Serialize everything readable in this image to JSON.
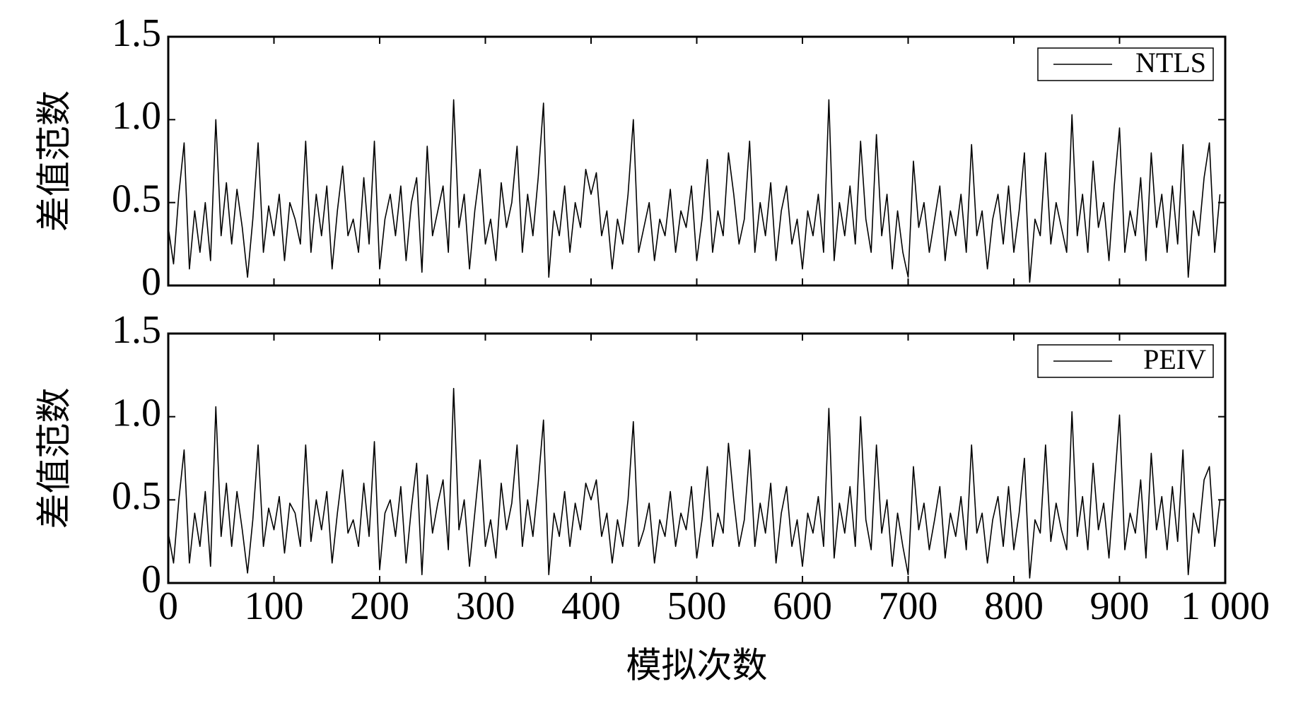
{
  "chart_data": [
    {
      "type": "line",
      "y_label": "差值范数",
      "legend": "upper right",
      "xlim": [
        0,
        1000
      ],
      "ylim": [
        0,
        1.5
      ],
      "yticks": [
        0,
        0.5,
        {
          "value": 1.0,
          "label": "1.0"
        },
        {
          "value": 1.5,
          "label": "1.5"
        }
      ],
      "x": [
        0,
        5,
        10,
        15,
        20,
        25,
        30,
        35,
        40,
        45,
        50,
        55,
        60,
        65,
        70,
        75,
        80,
        85,
        90,
        95,
        100,
        105,
        110,
        115,
        120,
        125,
        130,
        135,
        140,
        145,
        150,
        155,
        160,
        165,
        170,
        175,
        180,
        185,
        190,
        195,
        200,
        205,
        210,
        215,
        220,
        225,
        230,
        235,
        240,
        245,
        250,
        255,
        260,
        265,
        270,
        275,
        280,
        285,
        290,
        295,
        300,
        305,
        310,
        315,
        320,
        325,
        330,
        335,
        340,
        345,
        350,
        355,
        360,
        365,
        370,
        375,
        380,
        385,
        390,
        395,
        400,
        405,
        410,
        415,
        420,
        425,
        430,
        435,
        440,
        445,
        450,
        455,
        460,
        465,
        470,
        475,
        480,
        485,
        490,
        495,
        500,
        505,
        510,
        515,
        520,
        525,
        530,
        535,
        540,
        545,
        550,
        555,
        560,
        565,
        570,
        575,
        580,
        585,
        590,
        595,
        600,
        605,
        610,
        615,
        620,
        625,
        630,
        635,
        640,
        645,
        650,
        655,
        660,
        665,
        670,
        675,
        680,
        685,
        690,
        695,
        700,
        705,
        710,
        715,
        720,
        725,
        730,
        735,
        740,
        745,
        750,
        755,
        760,
        765,
        770,
        775,
        780,
        785,
        790,
        795,
        800,
        805,
        810,
        815,
        820,
        825,
        830,
        835,
        840,
        845,
        850,
        855,
        860,
        865,
        870,
        875,
        880,
        885,
        890,
        895,
        900,
        905,
        910,
        915,
        920,
        925,
        930,
        935,
        940,
        945,
        950,
        955,
        960,
        965,
        970,
        975,
        980,
        985,
        990,
        995
      ],
      "series": [
        {
          "name": "NTLS",
          "color": "#000000",
          "values": [
            0.35,
            0.13,
            0.55,
            0.86,
            0.1,
            0.45,
            0.2,
            0.5,
            0.15,
            1.0,
            0.3,
            0.62,
            0.25,
            0.58,
            0.35,
            0.05,
            0.4,
            0.86,
            0.2,
            0.48,
            0.3,
            0.55,
            0.15,
            0.5,
            0.4,
            0.25,
            0.87,
            0.2,
            0.55,
            0.3,
            0.6,
            0.1,
            0.45,
            0.72,
            0.3,
            0.4,
            0.2,
            0.65,
            0.25,
            0.87,
            0.1,
            0.4,
            0.55,
            0.3,
            0.6,
            0.15,
            0.5,
            0.65,
            0.08,
            0.84,
            0.3,
            0.45,
            0.6,
            0.2,
            1.12,
            0.35,
            0.55,
            0.1,
            0.45,
            0.7,
            0.25,
            0.4,
            0.15,
            0.62,
            0.35,
            0.5,
            0.84,
            0.2,
            0.55,
            0.3,
            0.65,
            1.1,
            0.05,
            0.45,
            0.3,
            0.6,
            0.2,
            0.5,
            0.35,
            0.7,
            0.55,
            0.68,
            0.3,
            0.45,
            0.1,
            0.4,
            0.25,
            0.55,
            1.0,
            0.2,
            0.35,
            0.5,
            0.15,
            0.4,
            0.3,
            0.58,
            0.2,
            0.45,
            0.35,
            0.6,
            0.15,
            0.4,
            0.76,
            0.2,
            0.45,
            0.3,
            0.8,
            0.55,
            0.25,
            0.4,
            0.87,
            0.2,
            0.5,
            0.3,
            0.62,
            0.15,
            0.45,
            0.6,
            0.25,
            0.4,
            0.1,
            0.45,
            0.3,
            0.55,
            0.2,
            1.12,
            0.15,
            0.5,
            0.3,
            0.6,
            0.25,
            0.87,
            0.4,
            0.2,
            0.91,
            0.3,
            0.55,
            0.1,
            0.45,
            0.2,
            0.05,
            0.75,
            0.35,
            0.5,
            0.2,
            0.4,
            0.6,
            0.15,
            0.45,
            0.3,
            0.55,
            0.2,
            0.85,
            0.3,
            0.45,
            0.1,
            0.4,
            0.55,
            0.25,
            0.6,
            0.2,
            0.45,
            0.8,
            0.02,
            0.4,
            0.3,
            0.8,
            0.25,
            0.5,
            0.35,
            0.2,
            1.03,
            0.3,
            0.55,
            0.2,
            0.75,
            0.35,
            0.5,
            0.15,
            0.6,
            0.95,
            0.2,
            0.45,
            0.3,
            0.65,
            0.15,
            0.8,
            0.35,
            0.55,
            0.2,
            0.6,
            0.25,
            0.85,
            0.05,
            0.45,
            0.3,
            0.65,
            0.86,
            0.2,
            0.55
          ]
        }
      ]
    },
    {
      "type": "line",
      "y_label": "差值范数",
      "x_label": "模拟次数",
      "legend": "upper right",
      "xlim": [
        0,
        1000
      ],
      "ylim": [
        0,
        1.5
      ],
      "yticks": [
        0,
        0.5,
        {
          "value": 1.0,
          "label": "1.0"
        },
        {
          "value": 1.5,
          "label": "1.5"
        }
      ],
      "xticks": [
        0,
        100,
        200,
        300,
        400,
        500,
        600,
        700,
        800,
        900,
        {
          "value": 1000,
          "label": "1 000"
        }
      ],
      "x": [
        0,
        5,
        10,
        15,
        20,
        25,
        30,
        35,
        40,
        45,
        50,
        55,
        60,
        65,
        70,
        75,
        80,
        85,
        90,
        95,
        100,
        105,
        110,
        115,
        120,
        125,
        130,
        135,
        140,
        145,
        150,
        155,
        160,
        165,
        170,
        175,
        180,
        185,
        190,
        195,
        200,
        205,
        210,
        215,
        220,
        225,
        230,
        235,
        240,
        245,
        250,
        255,
        260,
        265,
        270,
        275,
        280,
        285,
        290,
        295,
        300,
        305,
        310,
        315,
        320,
        325,
        330,
        335,
        340,
        345,
        350,
        355,
        360,
        365,
        370,
        375,
        380,
        385,
        390,
        395,
        400,
        405,
        410,
        415,
        420,
        425,
        430,
        435,
        440,
        445,
        450,
        455,
        460,
        465,
        470,
        475,
        480,
        485,
        490,
        495,
        500,
        505,
        510,
        515,
        520,
        525,
        530,
        535,
        540,
        545,
        550,
        555,
        560,
        565,
        570,
        575,
        580,
        585,
        590,
        595,
        600,
        605,
        610,
        615,
        620,
        625,
        630,
        635,
        640,
        645,
        650,
        655,
        660,
        665,
        670,
        675,
        680,
        685,
        690,
        695,
        700,
        705,
        710,
        715,
        720,
        725,
        730,
        735,
        740,
        745,
        750,
        755,
        760,
        765,
        770,
        775,
        780,
        785,
        790,
        795,
        800,
        805,
        810,
        815,
        820,
        825,
        830,
        835,
        840,
        845,
        850,
        855,
        860,
        865,
        870,
        875,
        880,
        885,
        890,
        895,
        900,
        905,
        910,
        915,
        920,
        925,
        930,
        935,
        940,
        945,
        950,
        955,
        960,
        965,
        970,
        975,
        980,
        985,
        990,
        995
      ],
      "series": [
        {
          "name": "PEIV",
          "color": "#000000",
          "values": [
            0.3,
            0.12,
            0.5,
            0.8,
            0.12,
            0.42,
            0.22,
            0.55,
            0.1,
            1.06,
            0.28,
            0.6,
            0.22,
            0.55,
            0.32,
            0.06,
            0.38,
            0.83,
            0.22,
            0.45,
            0.32,
            0.52,
            0.18,
            0.48,
            0.42,
            0.22,
            0.83,
            0.25,
            0.5,
            0.32,
            0.55,
            0.12,
            0.42,
            0.68,
            0.3,
            0.38,
            0.22,
            0.6,
            0.28,
            0.85,
            0.08,
            0.42,
            0.5,
            0.28,
            0.58,
            0.12,
            0.45,
            0.72,
            0.05,
            0.65,
            0.3,
            0.48,
            0.62,
            0.2,
            1.17,
            0.32,
            0.5,
            0.1,
            0.42,
            0.74,
            0.22,
            0.38,
            0.15,
            0.6,
            0.32,
            0.48,
            0.83,
            0.22,
            0.5,
            0.28,
            0.6,
            0.98,
            0.05,
            0.42,
            0.28,
            0.55,
            0.22,
            0.48,
            0.32,
            0.6,
            0.5,
            0.62,
            0.28,
            0.42,
            0.12,
            0.38,
            0.22,
            0.5,
            0.97,
            0.22,
            0.32,
            0.48,
            0.12,
            0.38,
            0.28,
            0.55,
            0.22,
            0.42,
            0.32,
            0.58,
            0.15,
            0.38,
            0.7,
            0.22,
            0.42,
            0.3,
            0.84,
            0.5,
            0.22,
            0.38,
            0.8,
            0.22,
            0.48,
            0.3,
            0.6,
            0.12,
            0.42,
            0.58,
            0.22,
            0.38,
            0.1,
            0.42,
            0.3,
            0.52,
            0.22,
            1.05,
            0.15,
            0.48,
            0.3,
            0.58,
            0.22,
            1.0,
            0.38,
            0.2,
            0.83,
            0.3,
            0.5,
            0.1,
            0.42,
            0.22,
            0.05,
            0.7,
            0.32,
            0.48,
            0.2,
            0.38,
            0.58,
            0.15,
            0.42,
            0.28,
            0.52,
            0.2,
            0.83,
            0.3,
            0.42,
            0.12,
            0.38,
            0.52,
            0.22,
            0.58,
            0.2,
            0.42,
            0.75,
            0.03,
            0.38,
            0.3,
            0.83,
            0.25,
            0.48,
            0.32,
            0.2,
            1.03,
            0.28,
            0.52,
            0.2,
            0.72,
            0.32,
            0.48,
            0.15,
            0.58,
            1.01,
            0.2,
            0.42,
            0.3,
            0.62,
            0.15,
            0.78,
            0.32,
            0.52,
            0.2,
            0.58,
            0.25,
            0.8,
            0.05,
            0.42,
            0.3,
            0.62,
            0.7,
            0.22,
            0.5
          ]
        }
      ]
    }
  ]
}
